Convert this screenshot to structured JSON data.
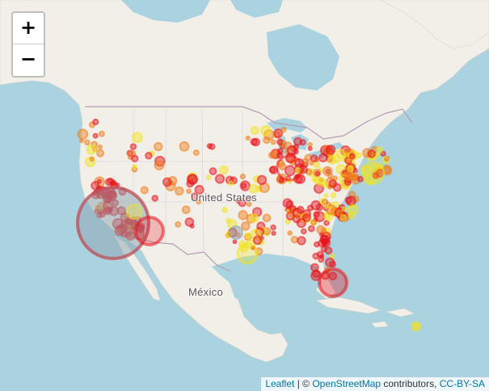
{
  "zoom": {
    "in_label": "+",
    "out_label": "−"
  },
  "labels": {
    "usa": "United States",
    "mexico": "México"
  },
  "attribution": {
    "leaflet": "Leaflet",
    "sep": " | © ",
    "osm": "OpenStreetMap",
    "contributors": " contributors, ",
    "license": "CC-BY-SA"
  },
  "colors": {
    "water": "#aad3df",
    "land": "#f2efe9",
    "border": "#b49bb4",
    "marker_red": "#e8141c",
    "marker_orange": "#ef7d1a",
    "marker_yellow": "#f2e31a",
    "marker_large_fill": "#8aa3b0"
  },
  "marker_legend": "circle markers, color from yellow (low) to red (high)"
}
